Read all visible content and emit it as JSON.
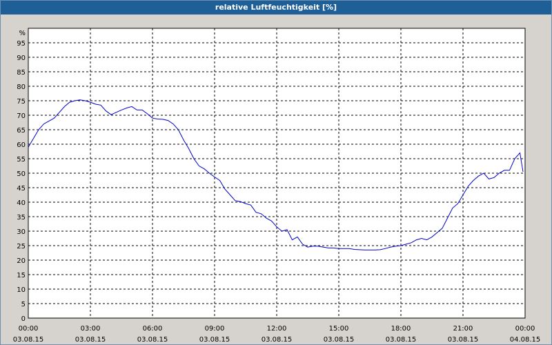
{
  "window": {
    "title": "relative Luftfeuchtigkeit [%]"
  },
  "chart_data": {
    "type": "line",
    "title": "relative Luftfeuchtigkeit [%]",
    "ylabel": "%",
    "xlabel": "",
    "ylim": [
      0,
      100
    ],
    "y_ticks": [
      0,
      5,
      10,
      15,
      20,
      25,
      30,
      35,
      40,
      45,
      50,
      55,
      60,
      65,
      70,
      75,
      80,
      85,
      90,
      95
    ],
    "x_ticks_hours": [
      0,
      3,
      6,
      9,
      12,
      15,
      18,
      21,
      24
    ],
    "x_tick_labels": [
      {
        "time": "00:00",
        "date": "03.08.15"
      },
      {
        "time": "03:00",
        "date": "03.08.15"
      },
      {
        "time": "06:00",
        "date": "03.08.15"
      },
      {
        "time": "09:00",
        "date": "03.08.15"
      },
      {
        "time": "12:00",
        "date": "03.08.15"
      },
      {
        "time": "15:00",
        "date": "03.08.15"
      },
      {
        "time": "18:00",
        "date": "03.08.15"
      },
      {
        "time": "21:00",
        "date": "03.08.15"
      },
      {
        "time": "00:00",
        "date": "04.08.15"
      }
    ],
    "grid": true,
    "line_color": "#0000cc",
    "series": [
      {
        "x": [
          0,
          0.25,
          0.5,
          0.75,
          1.0,
          1.25,
          1.5,
          1.75,
          2.0,
          2.25,
          2.5,
          2.75,
          3.0,
          3.25,
          3.5,
          3.75,
          4.0,
          4.25,
          4.5,
          4.75,
          5.0,
          5.25,
          5.5,
          5.75,
          6.0,
          6.25,
          6.5,
          6.75,
          7.0,
          7.25,
          7.5,
          7.75,
          8.0,
          8.25,
          8.5,
          8.75,
          9.0,
          9.25,
          9.5,
          9.75,
          10.0,
          10.25,
          10.5,
          10.75,
          11.0,
          11.25,
          11.5,
          11.75,
          12.0,
          12.25,
          12.5,
          12.75,
          13.0,
          13.25,
          13.5,
          13.75,
          14.0,
          14.25,
          14.5,
          14.75,
          15.0,
          15.25,
          15.5,
          15.75,
          16.0,
          16.25,
          16.5,
          16.75,
          17.0,
          17.25,
          17.5,
          17.75,
          18.0,
          18.25,
          18.5,
          18.75,
          19.0,
          19.25,
          19.5,
          19.75,
          20.0,
          20.25,
          20.5,
          20.75,
          21.0,
          21.25,
          21.5,
          21.75,
          22.0,
          22.25,
          22.5,
          22.75,
          23.0,
          23.25,
          23.5,
          23.75,
          23.9
        ],
        "values": [
          59,
          62,
          65,
          67,
          68,
          69,
          71,
          73,
          74.5,
          75,
          75.3,
          75,
          74.5,
          73.8,
          73.5,
          71.5,
          70.2,
          71,
          71.8,
          72.5,
          73,
          71.8,
          71.8,
          70.5,
          69,
          68.7,
          68.6,
          68.2,
          67,
          65,
          61.5,
          58.5,
          55,
          52.5,
          51.5,
          50,
          48.7,
          47.5,
          44.5,
          42.5,
          40.5,
          40.2,
          39.5,
          39,
          36.5,
          36,
          34.5,
          33.5,
          31.5,
          30,
          30.5,
          27,
          28,
          25.5,
          24.5,
          24.8,
          24.8,
          24.5,
          24.2,
          24.2,
          24,
          24,
          24,
          23.7,
          23.6,
          23.5,
          23.5,
          23.5,
          23.6,
          24,
          24.5,
          24.8,
          25,
          25.5,
          26,
          27,
          27.5,
          27,
          28,
          29.5,
          31,
          34.5,
          38,
          39.5,
          42.5,
          45.5,
          47.5,
          49,
          50,
          48,
          48.5,
          50,
          51,
          51,
          55,
          57,
          50.5
        ]
      }
    ]
  }
}
